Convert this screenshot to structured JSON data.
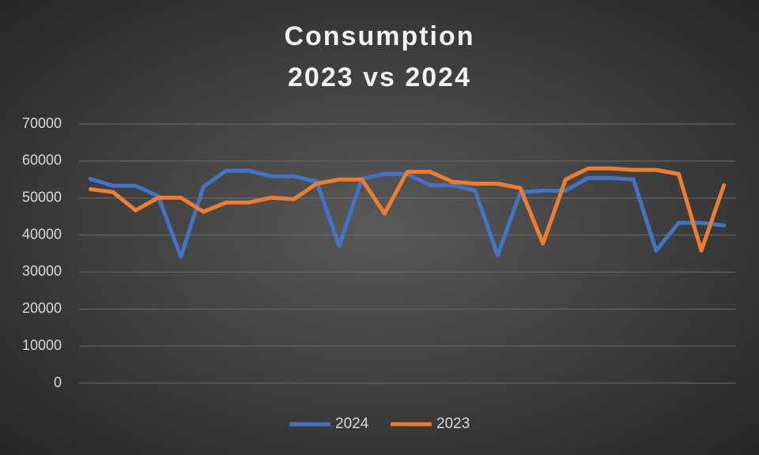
{
  "chart_data": {
    "type": "line",
    "title": [
      "Consumption",
      "2023 vs 2024"
    ],
    "series": [
      {
        "name": "2024",
        "color": "#4472c4",
        "values": [
          55200,
          53300,
          53300,
          50500,
          34100,
          53100,
          57400,
          57400,
          55900,
          55900,
          54400,
          37100,
          55200,
          56500,
          56500,
          53500,
          53500,
          52000,
          34500,
          51600,
          52000,
          52000,
          55400,
          55400,
          55000,
          35800,
          43300,
          43300,
          42600
        ]
      },
      {
        "name": "2023",
        "color": "#ed7d31",
        "values": [
          52400,
          51600,
          46700,
          50100,
          50100,
          46300,
          48800,
          48800,
          50100,
          49700,
          53900,
          55000,
          55000,
          45800,
          57100,
          57100,
          54400,
          53900,
          53900,
          52700,
          37700,
          55000,
          58000,
          58000,
          57600,
          57600,
          56500,
          35800,
          53500
        ]
      }
    ],
    "ylim": [
      0,
      70000
    ],
    "yticks": [
      0,
      10000,
      20000,
      30000,
      40000,
      50000,
      60000,
      70000
    ],
    "grid": true,
    "legend": "bottom"
  }
}
